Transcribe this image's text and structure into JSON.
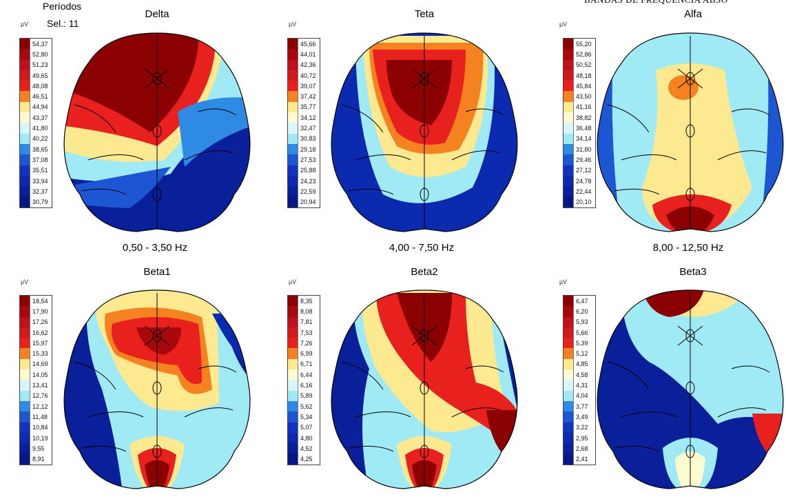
{
  "header": {
    "periods_label": "Períodos",
    "selection_label": "Sel.: 11",
    "banner_text": "BANDAS DE FREQUÊNCIA ABSO"
  },
  "colors": {
    "scale": [
      "#8b0000",
      "#a8080d",
      "#c0101a",
      "#d21a1a",
      "#e8201e",
      "#f58220",
      "#fde98f",
      "#fefbd0",
      "#d9f7fb",
      "#9feaf5",
      "#2e8ae2",
      "#1d56d2",
      "#1034c0",
      "#0c2ab0",
      "#0a1f9a",
      "#081788"
    ]
  },
  "panels": [
    {
      "band": "Delta",
      "unit": "µV",
      "frequency": "0,50 - 3,50 Hz",
      "scale": [
        "54,37",
        "52,80",
        "51,23",
        "49,65",
        "48,08",
        "46,51",
        "44,94",
        "43,37",
        "41,80",
        "40,22",
        "38,65",
        "37,08",
        "35,51",
        "33,94",
        "32,37",
        "30,79"
      ]
    },
    {
      "band": "Teta",
      "unit": "µV",
      "frequency": "4,00 - 7,50 Hz",
      "scale": [
        "45,66",
        "44,01",
        "42,36",
        "40,72",
        "39,07",
        "37,42",
        "35,77",
        "34,12",
        "32,47",
        "30,83",
        "29,18",
        "27,53",
        "25,88",
        "24,23",
        "22,59",
        "20,94"
      ]
    },
    {
      "band": "Alfa",
      "unit": "µV",
      "frequency": "8,00 - 12,50 Hz",
      "scale": [
        "55,20",
        "52,86",
        "50,52",
        "48,18",
        "45,84",
        "43,50",
        "41,16",
        "38,82",
        "36,48",
        "34,14",
        "31,80",
        "29,46",
        "27,12",
        "24,78",
        "22,44",
        "20,10"
      ]
    },
    {
      "band": "Beta1",
      "unit": "µV",
      "frequency": "",
      "scale": [
        "18,54",
        "17,90",
        "17,26",
        "16,62",
        "15,97",
        "15,33",
        "14,69",
        "14,05",
        "13,41",
        "12,76",
        "12,12",
        "11,48",
        "10,84",
        "10,19",
        "9,55",
        "8,91"
      ]
    },
    {
      "band": "Beta2",
      "unit": "µV",
      "frequency": "",
      "scale": [
        "8,35",
        "8,08",
        "7,81",
        "7,53",
        "7,26",
        "6,99",
        "6,71",
        "6,44",
        "6,16",
        "5,89",
        "5,62",
        "5,34",
        "5,07",
        "4,80",
        "4,52",
        "4,25"
      ]
    },
    {
      "band": "Beta3",
      "unit": "µV",
      "frequency": "",
      "scale": [
        "6,47",
        "6,20",
        "5,93",
        "5,66",
        "5,39",
        "5,12",
        "4,85",
        "4,58",
        "4,31",
        "4,04",
        "3,77",
        "3,49",
        "3,22",
        "2,95",
        "2,68",
        "2,41"
      ]
    }
  ]
}
